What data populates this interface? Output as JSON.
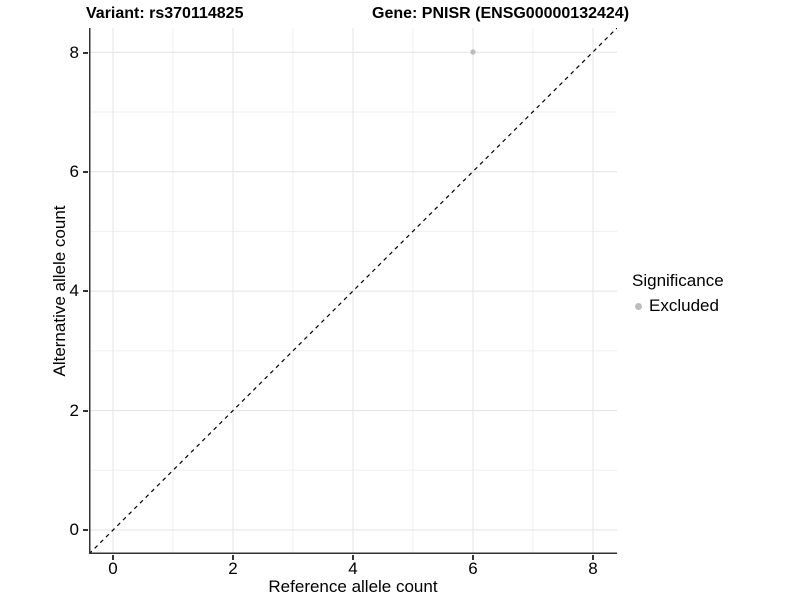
{
  "header": {
    "variant_title": "Variant: rs370114825",
    "gene_title": "Gene: PNISR (ENSG00000132424)"
  },
  "legend": {
    "title": "Significance",
    "entries": [
      {
        "label": "Excluded",
        "color": "#bdbdbd",
        "marker": "dot"
      }
    ],
    "position": "right"
  },
  "chart_data": {
    "type": "scatter",
    "title": "Variant: rs370114825   Gene: PNISR (ENSG00000132424)",
    "xlabel": "Reference allele count",
    "ylabel": "Alternative allele count",
    "xlim": [
      -0.4,
      8.4
    ],
    "ylim": [
      -0.4,
      8.4
    ],
    "x_ticks": [
      "0",
      "2",
      "4",
      "6",
      "8"
    ],
    "y_ticks": [
      "0",
      "2",
      "4",
      "6",
      "8"
    ],
    "grid": "on, light gray, major every 2 at even values plus minor at odd values",
    "series": [
      {
        "name": "Excluded",
        "color": "#bdbdbd",
        "points": [
          {
            "x": 6,
            "y": 8
          }
        ]
      }
    ],
    "reference_line": {
      "type": "identity y=x",
      "style": "dashed",
      "color": "#000000"
    },
    "colors": {
      "point": "#bdbdbd",
      "axis_line": "#333333",
      "grid_major": "#e3e3e3",
      "grid_minor": "#efefef",
      "background": "#ffffff"
    }
  }
}
